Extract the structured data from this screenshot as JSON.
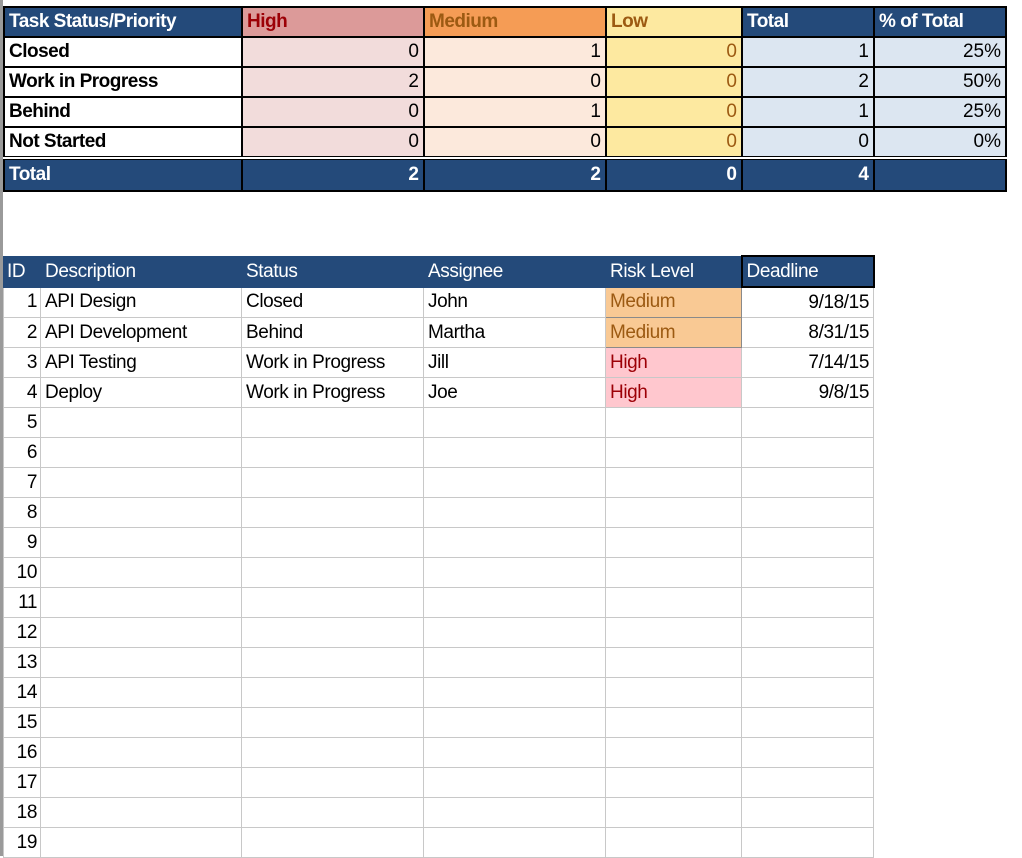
{
  "summary": {
    "headers": [
      "Task Status/Priority",
      "High",
      "Medium",
      "Low",
      "Total",
      "% of Total"
    ],
    "rows": [
      {
        "label": "Closed",
        "high": "0",
        "medium": "1",
        "low": "0",
        "total": "1",
        "pct": "25%"
      },
      {
        "label": "Work in Progress",
        "high": "2",
        "medium": "0",
        "low": "0",
        "total": "2",
        "pct": "50%"
      },
      {
        "label": "Behind",
        "high": "0",
        "medium": "1",
        "low": "0",
        "total": "1",
        "pct": "25%"
      },
      {
        "label": "Not Started",
        "high": "0",
        "medium": "0",
        "low": "0",
        "total": "0",
        "pct": "0%"
      }
    ],
    "total": {
      "label": "Total",
      "high": "2",
      "medium": "2",
      "low": "0",
      "total": "4",
      "pct": ""
    }
  },
  "tasks": {
    "headers": [
      "ID",
      "Description",
      "Status",
      "Assignee",
      "Risk Level",
      "Deadline"
    ],
    "rows": [
      {
        "id": "1",
        "description": "API Design",
        "status": "Closed",
        "assignee": "John",
        "risk": "Medium",
        "deadline": "9/18/15"
      },
      {
        "id": "2",
        "description": "API Development",
        "status": "Behind",
        "assignee": "Martha",
        "risk": "Medium",
        "deadline": "8/31/15"
      },
      {
        "id": "3",
        "description": "API Testing",
        "status": "Work in Progress",
        "assignee": "Jill",
        "risk": "High",
        "deadline": "7/14/15"
      },
      {
        "id": "4",
        "description": "Deploy",
        "status": "Work in Progress",
        "assignee": "Joe",
        "risk": "High",
        "deadline": "9/8/15"
      },
      {
        "id": "5"
      },
      {
        "id": "6"
      },
      {
        "id": "7"
      },
      {
        "id": "8"
      },
      {
        "id": "9"
      },
      {
        "id": "10"
      },
      {
        "id": "11"
      },
      {
        "id": "12"
      },
      {
        "id": "13"
      },
      {
        "id": "14"
      },
      {
        "id": "15"
      },
      {
        "id": "16"
      },
      {
        "id": "17"
      },
      {
        "id": "18"
      },
      {
        "id": "19"
      }
    ]
  },
  "colors": {
    "header": "#244a7a",
    "high": "#dc9a99",
    "medium": "#f59c55",
    "low": "#fde9a0",
    "risk_medium": "#f9c994",
    "risk_high": "#ffc7ce"
  }
}
